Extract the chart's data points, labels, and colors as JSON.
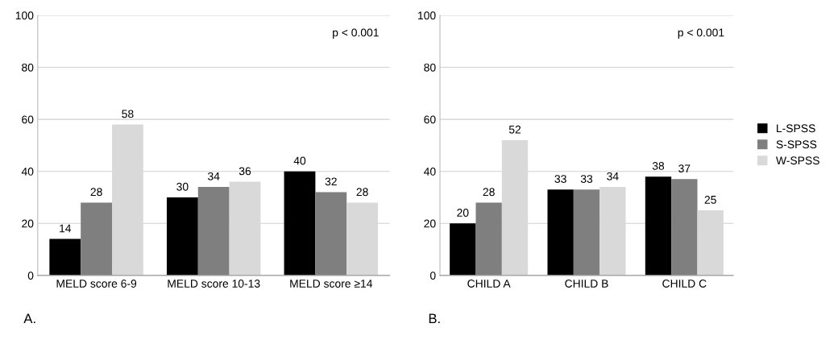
{
  "chart_data": [
    {
      "type": "bar",
      "categories": [
        "MELD score 6-9",
        "MELD score 10-13",
        "MELD score ≥14"
      ],
      "series": [
        {
          "color": "#000000",
          "values": [
            14,
            30,
            40
          ]
        },
        {
          "color": "#7f7f7f",
          "values": [
            28,
            34,
            32
          ]
        },
        {
          "color": "#d9d9d9",
          "values": [
            58,
            36,
            28
          ]
        }
      ],
      "ylim": [
        0,
        100
      ],
      "yticks": [
        0,
        20,
        40,
        60,
        80,
        100
      ],
      "grid": "y",
      "data_labels": true,
      "legend": false,
      "annotations": [
        "p < 0.001",
        "A."
      ]
    },
    {
      "type": "bar",
      "categories": [
        "CHILD A",
        "CHILD B",
        "CHILD C"
      ],
      "series": [
        {
          "name": "L-SPSS",
          "color": "#000000",
          "values": [
            20,
            33,
            38
          ]
        },
        {
          "name": "S-SPSS",
          "color": "#7f7f7f",
          "values": [
            28,
            33,
            37
          ]
        },
        {
          "name": "W-SPSS",
          "color": "#d9d9d9",
          "values": [
            52,
            34,
            25
          ]
        }
      ],
      "ylim": [
        0,
        100
      ],
      "yticks": [
        0,
        20,
        40,
        60,
        80,
        100
      ],
      "grid": "y",
      "data_labels": true,
      "legend": "right",
      "annotations": [
        "p < 0.001",
        "B."
      ]
    }
  ]
}
